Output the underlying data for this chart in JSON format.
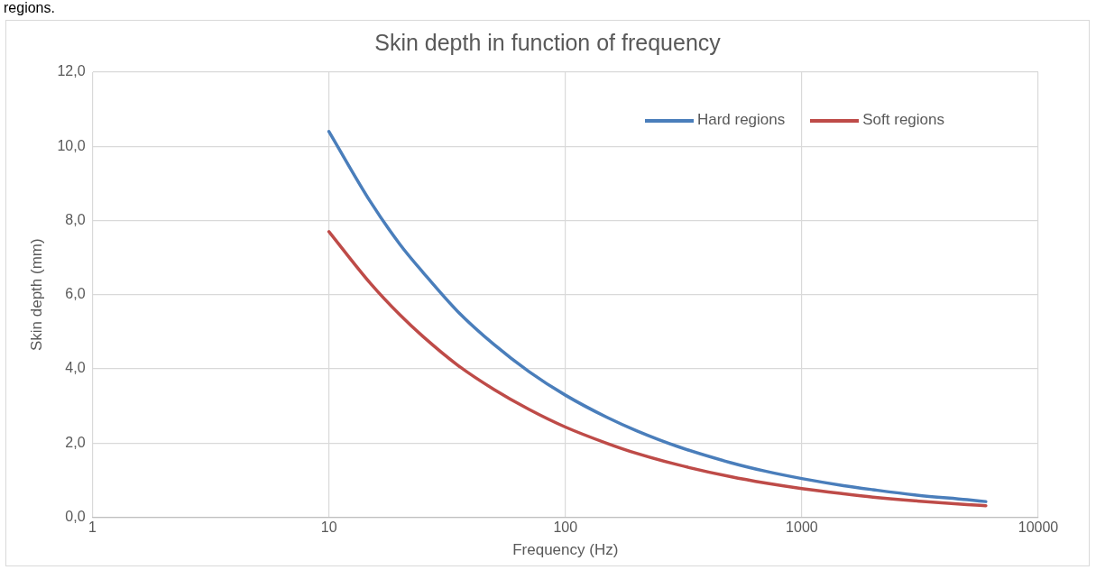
{
  "chart_data": {
    "type": "line",
    "title": "Skin depth in function of frequency",
    "xlabel": "Frequency (Hz)",
    "ylabel": "Skin depth (mm)",
    "annotations": [
      "regions."
    ],
    "log": "x",
    "grid": true,
    "legend": "top right",
    "marker": "none",
    "line_style": "solid",
    "xlim": [
      1,
      10000
    ],
    "xticks": [
      1,
      10,
      100,
      1000,
      10000
    ],
    "ylim": [
      0,
      12
    ],
    "yticks": [
      {
        "value": 0,
        "label": "0,0"
      },
      {
        "value": 2,
        "label": "2,0"
      },
      {
        "value": 4,
        "label": "4,0"
      },
      {
        "value": 6,
        "label": "6,0"
      },
      {
        "value": 8,
        "label": "8,0"
      },
      {
        "value": 10,
        "label": "10,0"
      },
      {
        "value": 12,
        "label": "12,0"
      }
    ],
    "series": [
      {
        "name": "Hard regions",
        "color": "#4a7ebb",
        "x": [
          10,
          15,
          20,
          25,
          35,
          50,
          70,
          100,
          150,
          200,
          300,
          500,
          700,
          1000,
          1500,
          2000,
          3000,
          5000,
          6000
        ],
        "values": [
          10.4,
          8.5,
          7.35,
          6.6,
          5.55,
          4.65,
          3.93,
          3.29,
          2.69,
          2.33,
          1.9,
          1.47,
          1.24,
          1.04,
          0.85,
          0.74,
          0.6,
          0.47,
          0.42
        ]
      },
      {
        "name": "Soft regions",
        "color": "#be4b48",
        "x": [
          10,
          15,
          20,
          25,
          35,
          50,
          70,
          100,
          150,
          200,
          300,
          500,
          700,
          1000,
          1500,
          2000,
          3000,
          5000,
          6000
        ],
        "values": [
          7.7,
          6.3,
          5.45,
          4.87,
          4.1,
          3.44,
          2.91,
          2.43,
          1.99,
          1.72,
          1.41,
          1.09,
          0.92,
          0.77,
          0.63,
          0.54,
          0.44,
          0.34,
          0.31
        ]
      }
    ]
  }
}
